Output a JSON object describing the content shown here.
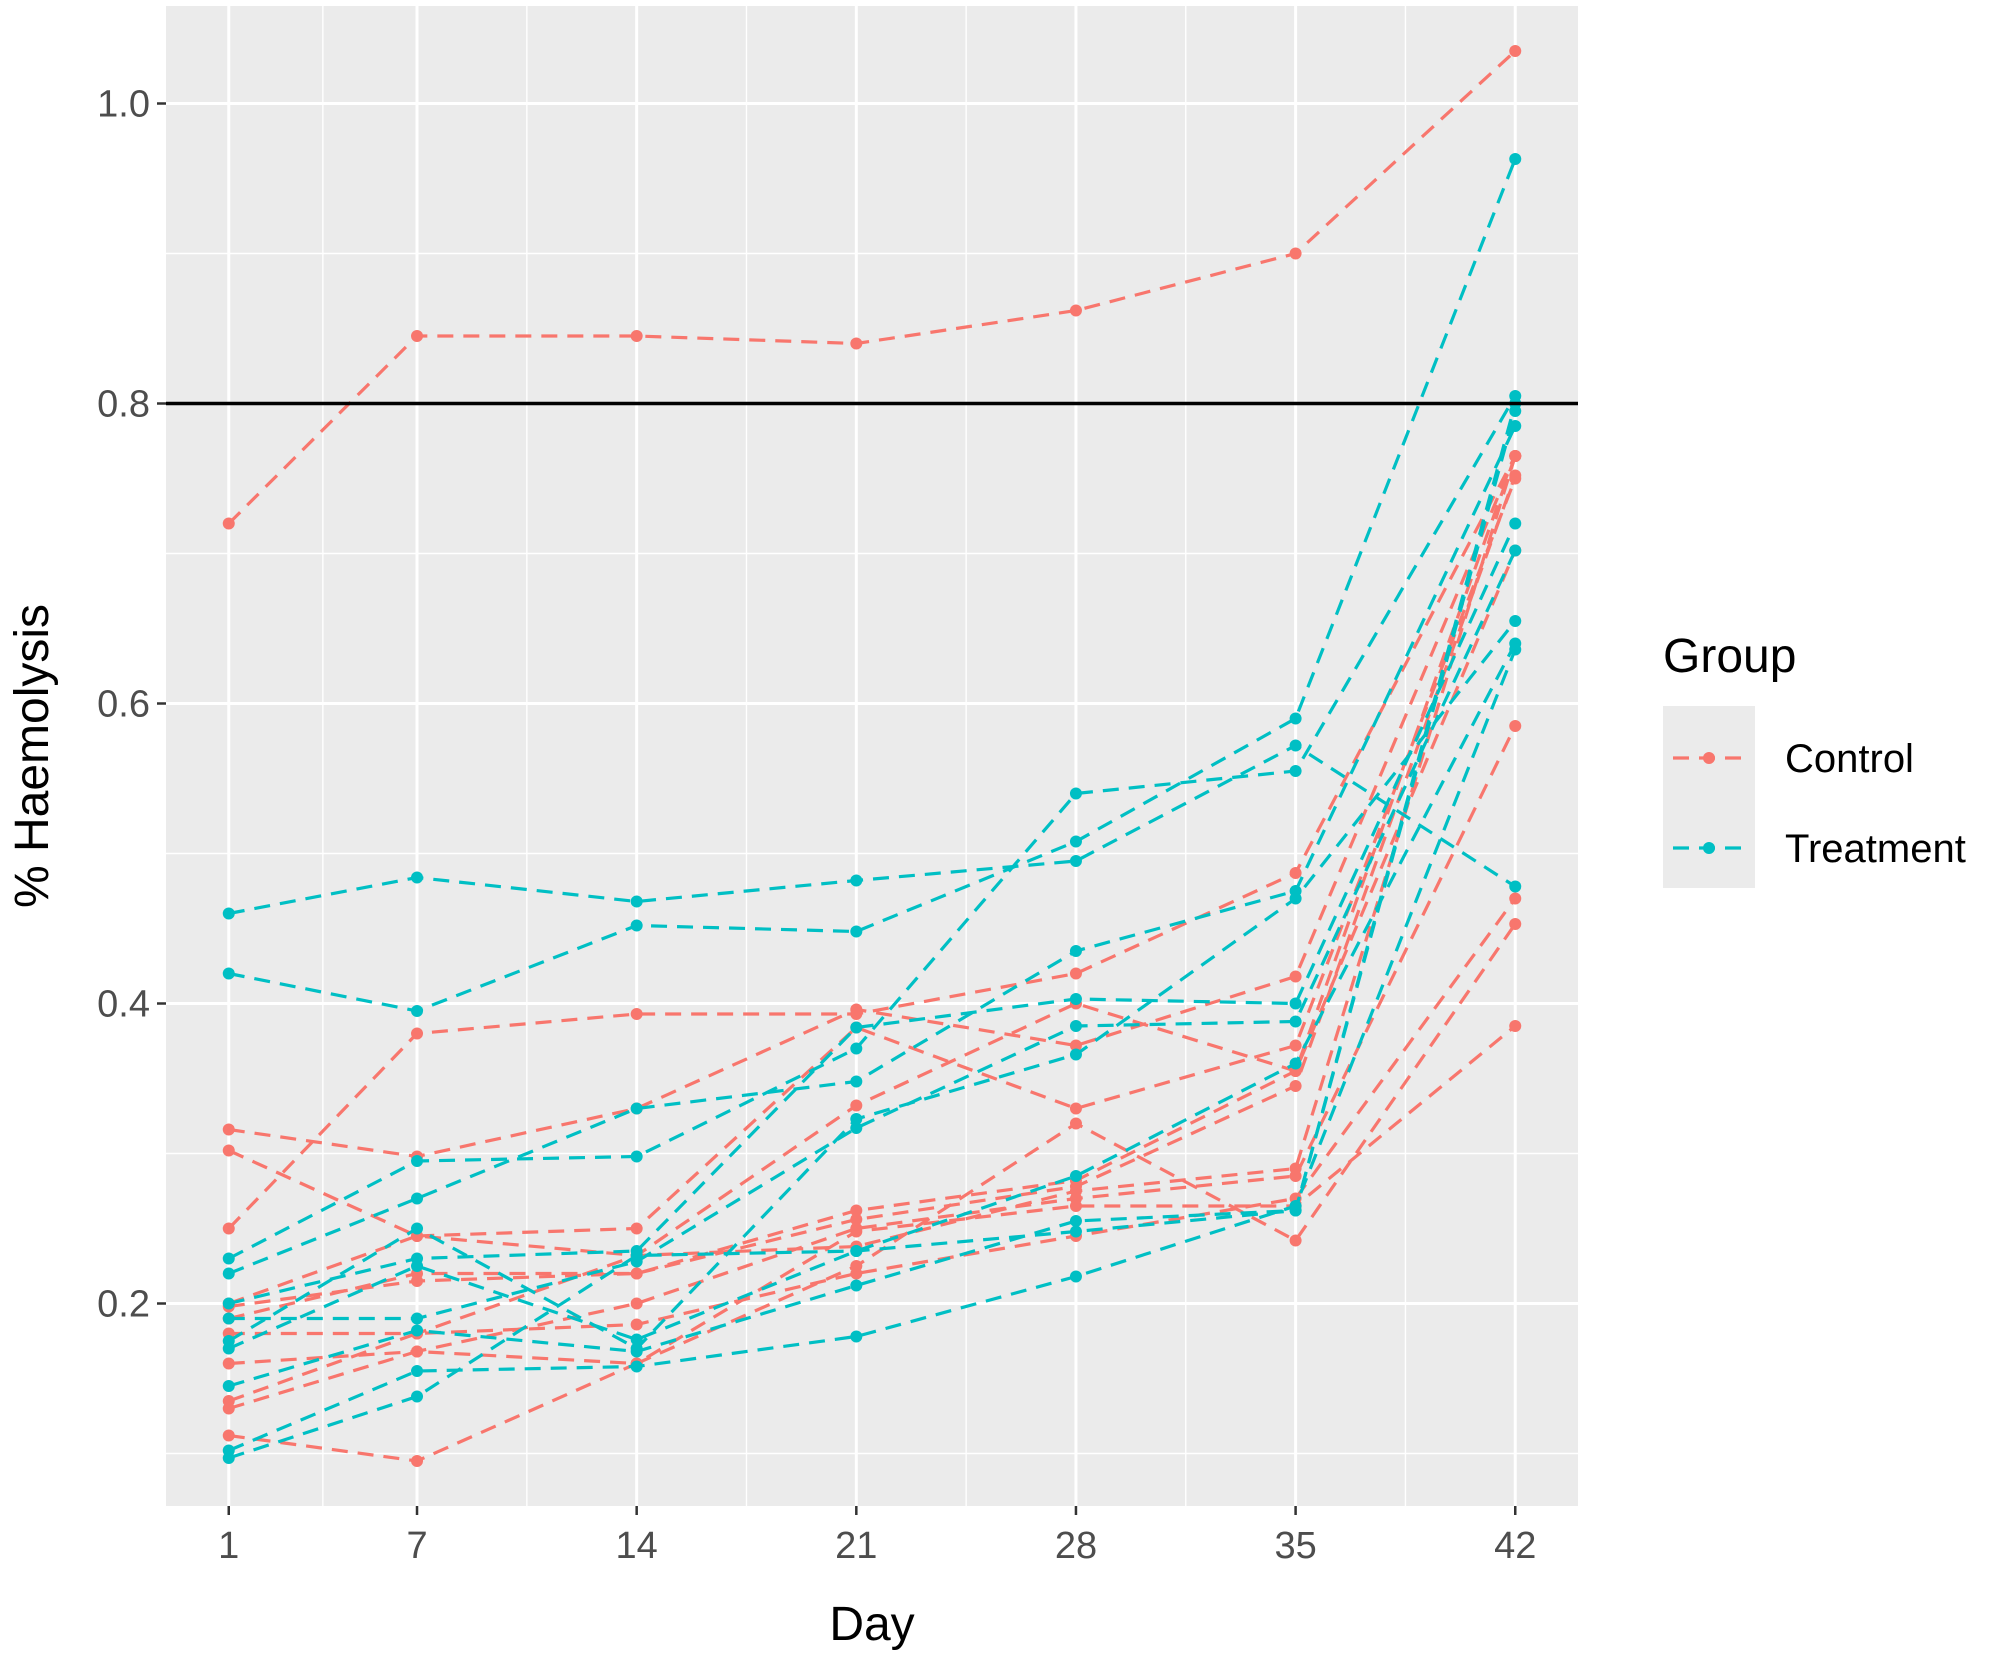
{
  "chart_data": {
    "type": "line",
    "xlabel": "Day",
    "ylabel": "% Haemolysis",
    "x": [
      1,
      7,
      14,
      21,
      28,
      35,
      42
    ],
    "x_ticks": [
      "1",
      "7",
      "14",
      "21",
      "28",
      "35",
      "42"
    ],
    "y_ticks": [
      "0.2",
      "0.4",
      "0.6",
      "0.8",
      "1.0"
    ],
    "y_tick_values": [
      0.2,
      0.4,
      0.6,
      0.8,
      1.0
    ],
    "xlim": [
      -1,
      44
    ],
    "ylim": [
      0.065,
      1.065
    ],
    "grid": true,
    "line_style": "dashed",
    "reference_line": {
      "y": 0.8,
      "color": "#000000"
    },
    "legend": {
      "title": "Group",
      "placement": "right",
      "entries": [
        {
          "label": "Control",
          "color": "#F8766D"
        },
        {
          "label": "Treatment",
          "color": "#00BFC4"
        }
      ]
    },
    "series": [
      {
        "group": "Control",
        "values": [
          0.72,
          0.845,
          0.845,
          0.84,
          0.862,
          0.9,
          1.035
        ]
      },
      {
        "group": "Control",
        "values": [
          0.25,
          0.38,
          0.393,
          0.393,
          0.42,
          0.487,
          0.765
        ]
      },
      {
        "group": "Control",
        "values": [
          0.316,
          0.298,
          0.33,
          0.396,
          0.372,
          0.418,
          0.765
        ]
      },
      {
        "group": "Control",
        "values": [
          0.302,
          0.245,
          0.25,
          0.384,
          0.33,
          0.372,
          0.75
        ]
      },
      {
        "group": "Control",
        "values": [
          0.2,
          0.245,
          0.232,
          0.332,
          0.4,
          0.355,
          0.702
        ]
      },
      {
        "group": "Control",
        "values": [
          0.198,
          0.215,
          0.22,
          0.262,
          0.282,
          0.355,
          0.765
        ]
      },
      {
        "group": "Control",
        "values": [
          0.19,
          0.22,
          0.22,
          0.256,
          0.278,
          0.345,
          0.752
        ]
      },
      {
        "group": "Control",
        "values": [
          0.18,
          0.18,
          0.232,
          0.238,
          0.275,
          0.29,
          0.765
        ]
      },
      {
        "group": "Control",
        "values": [
          0.16,
          0.168,
          0.2,
          0.25,
          0.27,
          0.285,
          0.585
        ]
      },
      {
        "group": "Control",
        "values": [
          0.135,
          0.18,
          0.186,
          0.22,
          0.245,
          0.27,
          0.47
        ]
      },
      {
        "group": "Control",
        "values": [
          0.13,
          0.168,
          0.16,
          0.225,
          0.32,
          0.242,
          0.453
        ]
      },
      {
        "group": "Control",
        "values": [
          0.112,
          0.095,
          0.16,
          0.248,
          0.265,
          0.265,
          0.385
        ]
      },
      {
        "group": "Treatment",
        "values": [
          0.46,
          0.484,
          0.468,
          0.482,
          0.495,
          0.572,
          0.478
        ]
      },
      {
        "group": "Treatment",
        "values": [
          0.42,
          0.395,
          0.452,
          0.448,
          0.508,
          0.59,
          0.963
        ]
      },
      {
        "group": "Treatment",
        "values": [
          0.23,
          0.295,
          0.298,
          0.37,
          0.54,
          0.555,
          0.805
        ]
      },
      {
        "group": "Treatment",
        "values": [
          0.22,
          0.27,
          0.33,
          0.348,
          0.435,
          0.475,
          0.785
        ]
      },
      {
        "group": "Treatment",
        "values": [
          0.2,
          0.23,
          0.235,
          0.384,
          0.403,
          0.4,
          0.72
        ]
      },
      {
        "group": "Treatment",
        "values": [
          0.19,
          0.19,
          0.228,
          0.317,
          0.385,
          0.388,
          0.702
        ]
      },
      {
        "group": "Treatment",
        "values": [
          0.175,
          0.25,
          0.17,
          0.323,
          0.366,
          0.47,
          0.655
        ]
      },
      {
        "group": "Treatment",
        "values": [
          0.17,
          0.225,
          0.176,
          0.235,
          0.285,
          0.36,
          0.64
        ]
      },
      {
        "group": "Treatment",
        "values": [
          0.145,
          0.182,
          0.168,
          0.212,
          0.255,
          0.262,
          0.795
        ]
      },
      {
        "group": "Treatment",
        "values": [
          0.102,
          0.155,
          0.158,
          0.178,
          0.218,
          0.265,
          0.636
        ]
      },
      {
        "group": "Treatment",
        "values": [
          0.097,
          0.138,
          0.232,
          0.235,
          0.248,
          0.262,
          0.8
        ]
      }
    ]
  }
}
